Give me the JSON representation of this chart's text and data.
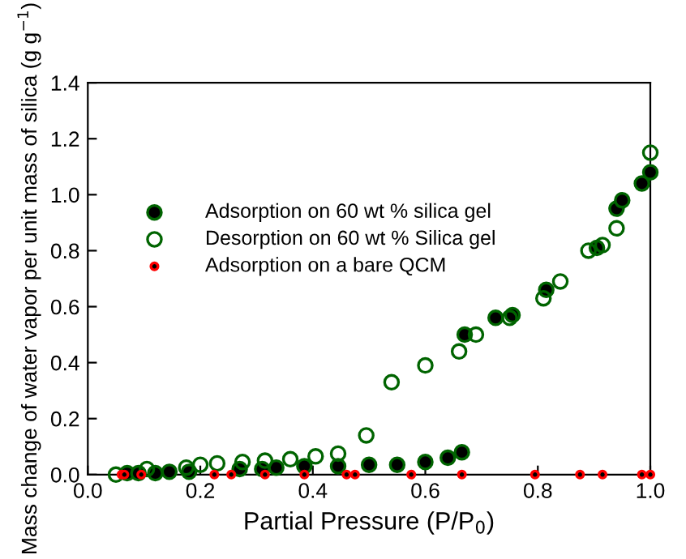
{
  "chart_data": {
    "type": "scatter",
    "xlabel": "Partial Pressure (P/P$_{0}$)",
    "ylabel": "Mass change of water vapor per unit mass of silica (g g$^{−1}$)",
    "xlim": [
      0,
      1
    ],
    "ylim": [
      0,
      1.4
    ],
    "xticks": [
      {
        "value": 0,
        "label": "0.0"
      },
      0.2,
      0.4,
      0.6,
      0.8,
      {
        "value": 1,
        "label": "1.0"
      }
    ],
    "yticks": [
      {
        "value": 0,
        "label": "0.0"
      },
      0.2,
      0.4,
      0.6,
      0.8,
      {
        "value": 1,
        "label": "1.0"
      },
      1.2,
      1.4
    ],
    "grid": false,
    "legend": "left",
    "marker": "circle",
    "series": [
      {
        "name": "Adsorption on 60 wt % silica gel",
        "color": "#006400",
        "x": [
          0.07,
          0.09,
          0.12,
          0.145,
          0.18,
          0.27,
          0.31,
          0.335,
          0.385,
          0.445,
          0.5,
          0.55,
          0.6,
          0.64,
          0.665,
          0.67,
          0.725,
          0.755,
          0.815,
          0.905,
          0.94,
          0.95,
          0.985,
          1.0
        ],
        "values": [
          0.005,
          0.005,
          0.005,
          0.01,
          0.01,
          0.02,
          0.02,
          0.025,
          0.03,
          0.03,
          0.035,
          0.035,
          0.045,
          0.06,
          0.08,
          0.5,
          0.56,
          0.57,
          0.66,
          0.81,
          0.95,
          0.98,
          1.04,
          1.08
        ]
      },
      {
        "name": "Desorption on 60 wt % Silica gel",
        "color": "#006400",
        "x": [
          0.05,
          0.105,
          0.175,
          0.2,
          0.23,
          0.275,
          0.315,
          0.36,
          0.405,
          0.445,
          0.495,
          0.54,
          0.6,
          0.66,
          0.69,
          0.75,
          0.81,
          0.84,
          0.89,
          0.915,
          0.94,
          1.0
        ],
        "values": [
          0,
          0.02,
          0.025,
          0.035,
          0.04,
          0.045,
          0.05,
          0.055,
          0.065,
          0.075,
          0.14,
          0.33,
          0.39,
          0.44,
          0.5,
          0.56,
          0.63,
          0.69,
          0.8,
          0.82,
          0.88,
          1.15
        ]
      },
      {
        "name": "Adsorption on a bare QCM",
        "color": "#ff0000",
        "x": [
          0.06,
          0.065,
          0.095,
          0.225,
          0.255,
          0.315,
          0.385,
          0.46,
          0.475,
          0.575,
          0.665,
          0.795,
          0.875,
          0.915,
          0.985,
          1.0
        ],
        "values": [
          0,
          0,
          0,
          0,
          0,
          0,
          0,
          0,
          0,
          0,
          0,
          0,
          0,
          0,
          0,
          0
        ]
      }
    ]
  }
}
